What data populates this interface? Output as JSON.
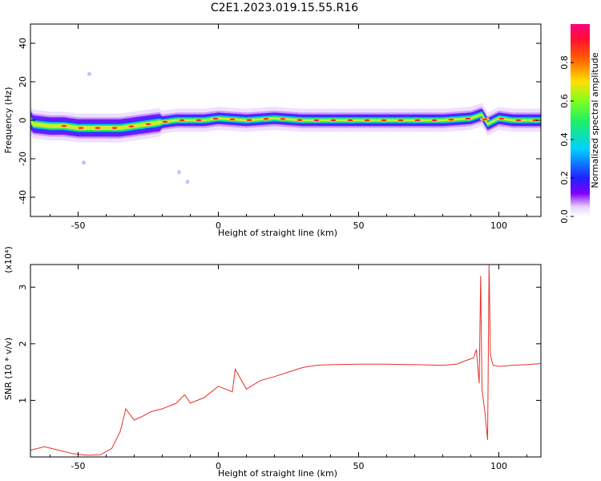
{
  "title": "C2E1.2023.019.15.55.R16",
  "chart_data": [
    {
      "type": "heatmap",
      "xlabel": "Height of straight line (km)",
      "ylabel": "Frequency (Hz)",
      "xlim": [
        -67,
        115
      ],
      "ylim": [
        -50,
        50
      ],
      "xticks": [
        -50,
        0,
        50,
        100
      ],
      "yticks": [
        -40,
        -20,
        0,
        20,
        40
      ],
      "colorbar": {
        "label": "Normalized spectral amplitude",
        "range": [
          0,
          1
        ],
        "ticks": [
          "0.0",
          "0.2",
          "0.4",
          "0.6",
          "0.8"
        ]
      },
      "ridge": [
        {
          "x": -66,
          "f": -2
        },
        {
          "x": -60,
          "f": -3
        },
        {
          "x": -55,
          "f": -3
        },
        {
          "x": -50,
          "f": -4
        },
        {
          "x": -45,
          "f": -4
        },
        {
          "x": -40,
          "f": -4
        },
        {
          "x": -35,
          "f": -4
        },
        {
          "x": -30,
          "f": -3
        },
        {
          "x": -25,
          "f": -2
        },
        {
          "x": -20,
          "f": -1
        },
        {
          "x": -15,
          "f": 0
        },
        {
          "x": -10,
          "f": 0
        },
        {
          "x": -5,
          "f": 0
        },
        {
          "x": 0,
          "f": 1
        },
        {
          "x": 10,
          "f": 0
        },
        {
          "x": 20,
          "f": 1
        },
        {
          "x": 30,
          "f": 0
        },
        {
          "x": 40,
          "f": 0
        },
        {
          "x": 50,
          "f": 0
        },
        {
          "x": 60,
          "f": 0
        },
        {
          "x": 70,
          "f": 0
        },
        {
          "x": 80,
          "f": 0
        },
        {
          "x": 90,
          "f": 1
        },
        {
          "x": 94,
          "f": 3
        },
        {
          "x": 96,
          "f": -2
        },
        {
          "x": 100,
          "f": 1
        },
        {
          "x": 105,
          "f": 0
        },
        {
          "x": 114,
          "f": 0
        }
      ],
      "scatter_blobs": [
        {
          "x": -46,
          "f": 24
        },
        {
          "x": -48,
          "f": -22
        },
        {
          "x": -14,
          "f": -27
        },
        {
          "x": -11,
          "f": -32
        }
      ]
    },
    {
      "type": "line",
      "xlabel": "Height of straight line (km)",
      "ylabel": "SNR (10 * v/v)",
      "yscale_label": "(x10⁴)",
      "xlim": [
        -67,
        115
      ],
      "ylim": [
        0,
        3.4
      ],
      "xticks": [
        -50,
        0,
        50,
        100
      ],
      "yticks": [
        1,
        2,
        3
      ],
      "series": [
        {
          "color": "#e8302a",
          "x": [
            -67,
            -62,
            -57,
            -52,
            -47,
            -42,
            -38,
            -35,
            -33,
            -30,
            -27,
            -24,
            -20,
            -15,
            -12,
            -10,
            -5,
            0,
            5,
            6,
            10,
            15,
            20,
            25,
            30,
            35,
            40,
            50,
            60,
            70,
            80,
            85,
            88,
            91,
            92,
            93,
            93.5,
            94,
            95,
            96,
            96.5,
            97,
            97.5,
            98,
            100,
            105,
            110,
            115
          ],
          "y": [
            0.12,
            0.18,
            0.12,
            0.06,
            0.03,
            0.04,
            0.15,
            0.45,
            0.85,
            0.65,
            0.72,
            0.8,
            0.85,
            0.95,
            1.1,
            0.95,
            1.05,
            1.25,
            1.15,
            1.55,
            1.2,
            1.35,
            1.42,
            1.5,
            1.58,
            1.62,
            1.63,
            1.64,
            1.64,
            1.63,
            1.62,
            1.64,
            1.7,
            1.75,
            1.9,
            1.3,
            3.2,
            1.2,
            0.8,
            0.3,
            3.4,
            1.8,
            1.7,
            1.62,
            1.6,
            1.62,
            1.63,
            1.65
          ]
        }
      ]
    }
  ]
}
